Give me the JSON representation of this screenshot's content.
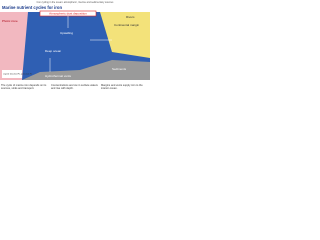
{
  "header": "Iron cycling in the ocean: atmospheric, riverine and sedimentary sources",
  "title": "Marine nutrient cycles for iron",
  "labels": [
    "Atmospheric dust deposition",
    "Photic zone",
    "Continental margin",
    "Rivers",
    "Upwelling",
    "Sediments",
    "Hydrothermal vents",
    "Deep ocean"
  ],
  "legend": "Legend: dissolved Fe, particulate Fe",
  "captions": [
    "The cycle of marine iron depends on its sources, sinks and transport.",
    "Concentrations are low in surface waters and rise with depth.",
    "Margins and vents supply iron to the interior ocean."
  ]
}
